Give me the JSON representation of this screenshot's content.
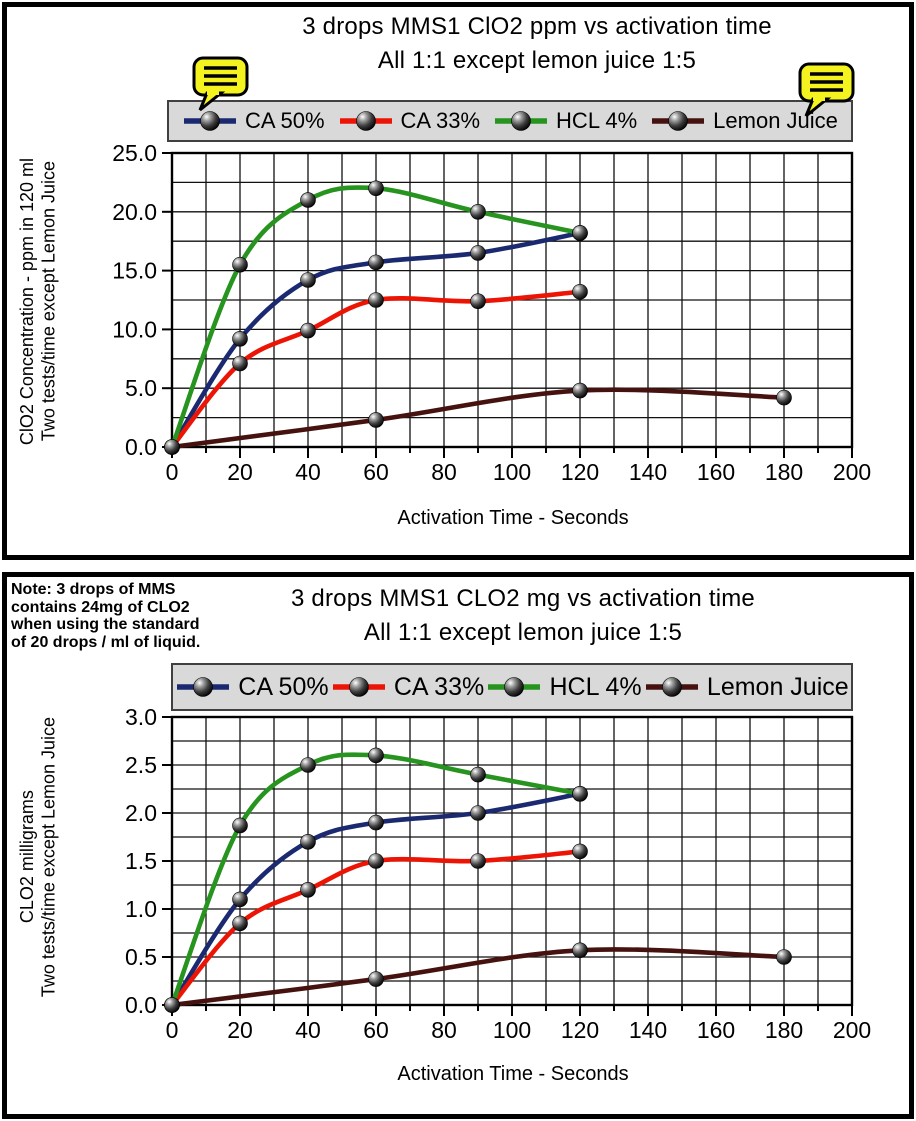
{
  "colors": {
    "ca50_navy": "#1b2a70",
    "ca33_red": "#ec1505",
    "hcl_green": "#27941f",
    "lemon_maroon": "#451210",
    "legend_background": "#d9d9d9",
    "callout_yellow": "#f4f21f",
    "grid": "#111111"
  },
  "chart_data": [
    {
      "type": "line",
      "title": "3 drops MMS1 ClO2 ppm vs activation time",
      "subtitle": "All 1:1 except lemon juice 1:5",
      "xlabel": "Activation Time - Seconds",
      "ylabel": [
        "ClO2 Concentration - ppm in 120 ml",
        "Two tests/time except Lemon Juice"
      ],
      "xlim": [
        0,
        200
      ],
      "ylim": [
        0,
        25
      ],
      "x_tick_step": 20,
      "x_grid_step": 10,
      "y_tick_step": 5,
      "y_grid_step": 2.5,
      "y_tick_decimals": 1,
      "grid": true,
      "legend_position": "top",
      "callout_icons": [
        "comment-callout-icon",
        "comment-callout-icon"
      ],
      "series": [
        {
          "name": "CA 50%",
          "color": "#1b2a70",
          "x": [
            0,
            20,
            40,
            60,
            90,
            120
          ],
          "y": [
            0,
            9.2,
            14.2,
            15.7,
            16.5,
            18.2
          ]
        },
        {
          "name": "CA 33%",
          "color": "#ec1505",
          "x": [
            0,
            20,
            40,
            60,
            90,
            120
          ],
          "y": [
            0,
            7.1,
            9.9,
            12.5,
            12.4,
            13.2
          ]
        },
        {
          "name": "HCL 4%",
          "color": "#27941f",
          "x": [
            0,
            20,
            40,
            60,
            90,
            120
          ],
          "y": [
            0,
            15.5,
            21.0,
            22.0,
            20.0,
            18.2
          ]
        },
        {
          "name": "Lemon Juice",
          "color": "#451210",
          "x": [
            0,
            60,
            120,
            180
          ],
          "y": [
            0,
            2.3,
            4.8,
            4.2
          ]
        }
      ]
    },
    {
      "type": "line",
      "title": "3 drops MMS1 CLO2 mg vs activation time",
      "subtitle": "All 1:1 except lemon juice 1:5",
      "note": [
        "Note: 3 drops of MMS",
        "contains 24mg of CLO2",
        "when using the standard",
        "of 20 drops / ml of liquid."
      ],
      "xlabel": "Activation Time - Seconds",
      "ylabel": [
        "CLO2 milligrams",
        "Two tests/time except Lemon Juice"
      ],
      "xlim": [
        0,
        200
      ],
      "ylim": [
        0,
        3
      ],
      "x_tick_step": 20,
      "x_grid_step": 10,
      "y_tick_step": 0.5,
      "y_grid_step": 0.25,
      "y_tick_decimals": 1,
      "grid": true,
      "legend_position": "top",
      "series": [
        {
          "name": "CA 50%",
          "color": "#1b2a70",
          "x": [
            0,
            20,
            40,
            60,
            90,
            120
          ],
          "y": [
            0,
            1.1,
            1.7,
            1.9,
            2.0,
            2.2
          ]
        },
        {
          "name": "CA 33%",
          "color": "#ec1505",
          "x": [
            0,
            20,
            40,
            60,
            90,
            120
          ],
          "y": [
            0,
            0.85,
            1.2,
            1.5,
            1.5,
            1.6
          ]
        },
        {
          "name": "HCL 4%",
          "color": "#27941f",
          "x": [
            0,
            20,
            40,
            60,
            90,
            120
          ],
          "y": [
            0,
            1.87,
            2.5,
            2.6,
            2.4,
            2.2
          ]
        },
        {
          "name": "Lemon Juice",
          "color": "#451210",
          "x": [
            0,
            60,
            120,
            180
          ],
          "y": [
            0,
            0.27,
            0.57,
            0.5
          ]
        }
      ]
    }
  ]
}
